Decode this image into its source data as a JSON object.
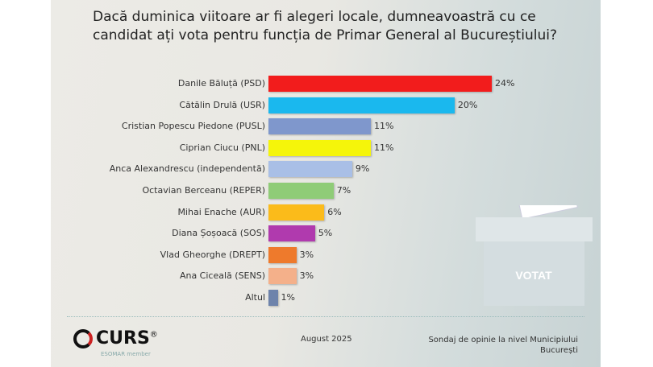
{
  "chart_data": {
    "type": "bar",
    "orientation": "horizontal",
    "title": "Dacă duminica viitoare ar fi alegeri locale, dumneavoastră cu ce candidat ați vota pentru funcția de Primar General al Bucureștiului?",
    "categories": [
      "Danile Băluță (PSD)",
      "Cătălin Drulă (USR)",
      "Cristian Popescu Piedone (PUSL)",
      "Ciprian Ciucu (PNL)",
      "Anca Alexandrescu (independentă)",
      "Octavian Berceanu (REPER)",
      "Mihai Enache (AUR)",
      "Diana Șoșoacă (SOS)",
      "Vlad Gheorghe (DREPT)",
      "Ana Ciceală (SENS)",
      "Altul"
    ],
    "values": [
      24,
      20,
      11,
      11,
      9,
      7,
      6,
      5,
      3,
      3,
      1
    ],
    "value_labels": [
      "24%",
      "20%",
      "11%",
      "11%",
      "9%",
      "7%",
      "6%",
      "5%",
      "3%",
      "3%",
      "1%"
    ],
    "colors": [
      "#f21c1c",
      "#1ab8ee",
      "#7f97cc",
      "#f5f50a",
      "#a9bfe6",
      "#8fcc77",
      "#fbbb1a",
      "#b03aae",
      "#ee7a2c",
      "#f4b08a",
      "#6e83ab"
    ],
    "xlim": [
      0,
      24
    ],
    "grid": false,
    "legend": "none"
  },
  "footer": {
    "logo": "CURS",
    "logo_mark": "®",
    "esomar": "ESOMAR member",
    "date": "August 2025",
    "source_line1": "Sondaj de opinie la nivel Municipiului",
    "source_line2": "București"
  },
  "ballot_box": {
    "label": "VOTAT"
  }
}
